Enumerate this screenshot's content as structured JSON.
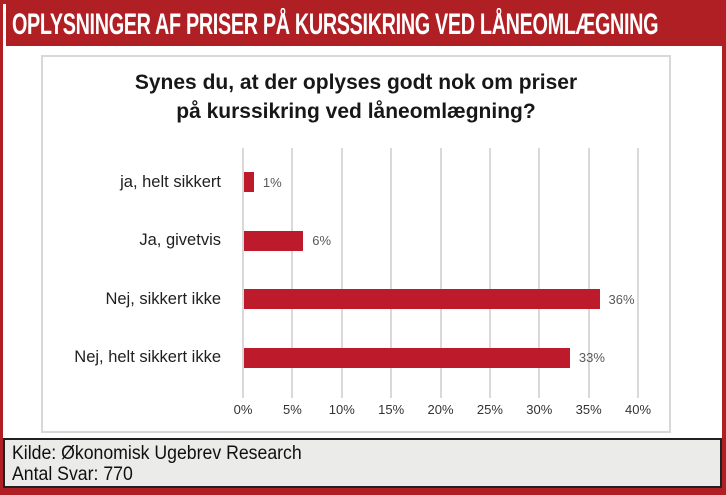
{
  "banner": {
    "title": "OPLYSNINGER AF PRISER PÅ KURSSIKRING VED LÅNEOMLÆGNING"
  },
  "chart_data": {
    "type": "bar",
    "orientation": "horizontal",
    "title": "Synes du, at der oplyses godt nok om priser på kurssikring ved låneomlægning?",
    "title_lines": [
      "Synes du, at der oplyses godt nok om priser",
      "på kurssikring ved låneomlægning?"
    ],
    "categories": [
      "ja, helt sikkert",
      "Ja, givetvis",
      "Nej, sikkert ikke",
      "Nej, helt sikkert ikke"
    ],
    "values": [
      1,
      6,
      36,
      33
    ],
    "value_labels": [
      "1%",
      "6%",
      "36%",
      "33%"
    ],
    "xlim": [
      0,
      40
    ],
    "x_tick_values": [
      0,
      5,
      10,
      15,
      20,
      25,
      30,
      35,
      40
    ],
    "x_ticks": [
      "0%",
      "5%",
      "10%",
      "15%",
      "20%",
      "25%",
      "30%",
      "35%",
      "40%"
    ],
    "grid": true,
    "legend": "none",
    "bar_color": "#bd1a2b"
  },
  "footer": {
    "source": "Kilde: Økonomisk Ugebrev Research",
    "responses": "Antal Svar: 770"
  },
  "colors": {
    "banner_red": "#b01f24",
    "bar_red": "#bd1a2b",
    "border_red": "#b01f24",
    "gridline_gray": "#d9d9d9",
    "footer_bg": "#ebebe9",
    "value_label_gray": "#595959"
  }
}
